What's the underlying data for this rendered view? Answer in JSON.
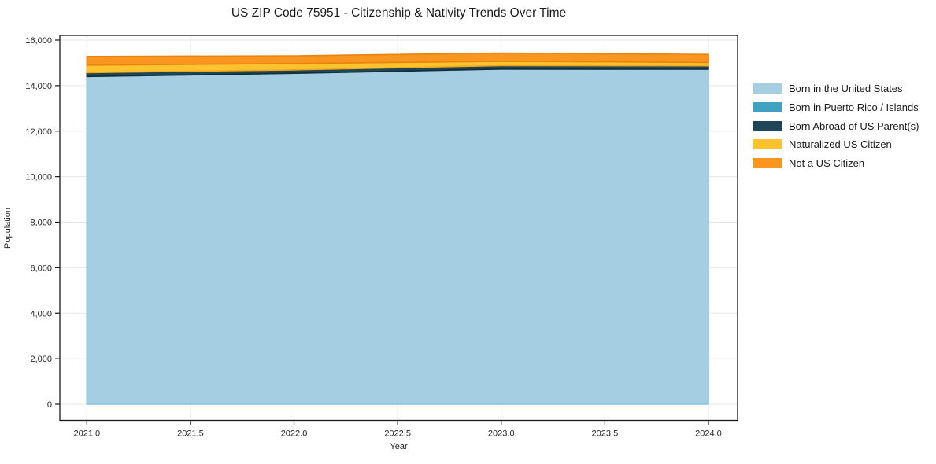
{
  "title": "US ZIP Code 75951 - Citizenship & Nativity Trends Over Time",
  "colors": {
    "background": "#ffffff",
    "grid": "#e7e7e7",
    "spine": "#1a1a1a",
    "tick_label": "#262626"
  },
  "chart_data": {
    "type": "area",
    "stacked": true,
    "title": "US ZIP Code 75951 - Citizenship & Nativity Trends Over Time",
    "xlabel": "Year",
    "ylabel": "Population",
    "x": [
      2021,
      2022,
      2023,
      2024
    ],
    "series": [
      {
        "name": "Born in the United States",
        "color": "#a5cee3",
        "edge": "#8abfd9",
        "values": [
          14400,
          14540,
          14730,
          14720
        ]
      },
      {
        "name": "Born in Puerto Rico / Islands",
        "color": "#42a1c2",
        "edge": "#42a1c2",
        "values": [
          0,
          0,
          0,
          0
        ]
      },
      {
        "name": "Born Abroad of US Parent(s)",
        "color": "#1f4656",
        "edge": "#132d39",
        "values": [
          170,
          150,
          150,
          150
        ]
      },
      {
        "name": "Naturalized US Citizen",
        "color": "#fdc32f",
        "edge": "#f0a61c",
        "values": [
          330,
          280,
          190,
          150
        ]
      },
      {
        "name": "Not a US Citizen",
        "color": "#f8961f",
        "edge": "#e8830f",
        "values": [
          380,
          340,
          360,
          350
        ]
      }
    ],
    "totals": [
      15280,
      15310,
      15430,
      15370
    ],
    "xlim": [
      2020.87,
      2024.14
    ],
    "ylim": [
      0,
      16000
    ],
    "grid": true,
    "legend_position": "right",
    "xticks": {
      "values": [
        2021.0,
        2021.5,
        2022.0,
        2022.5,
        2023.0,
        2023.5,
        2024.0
      ],
      "labels": [
        "2021.0",
        "2021.5",
        "2022.0",
        "2022.5",
        "2023.0",
        "2023.5",
        "2024.0"
      ]
    },
    "yticks": {
      "values": [
        0,
        2000,
        4000,
        6000,
        8000,
        10000,
        12000,
        14000,
        16000
      ],
      "labels": [
        "0",
        "2,000",
        "4,000",
        "6,000",
        "8,000",
        "10,000",
        "12,000",
        "14,000",
        "16,000"
      ]
    }
  }
}
